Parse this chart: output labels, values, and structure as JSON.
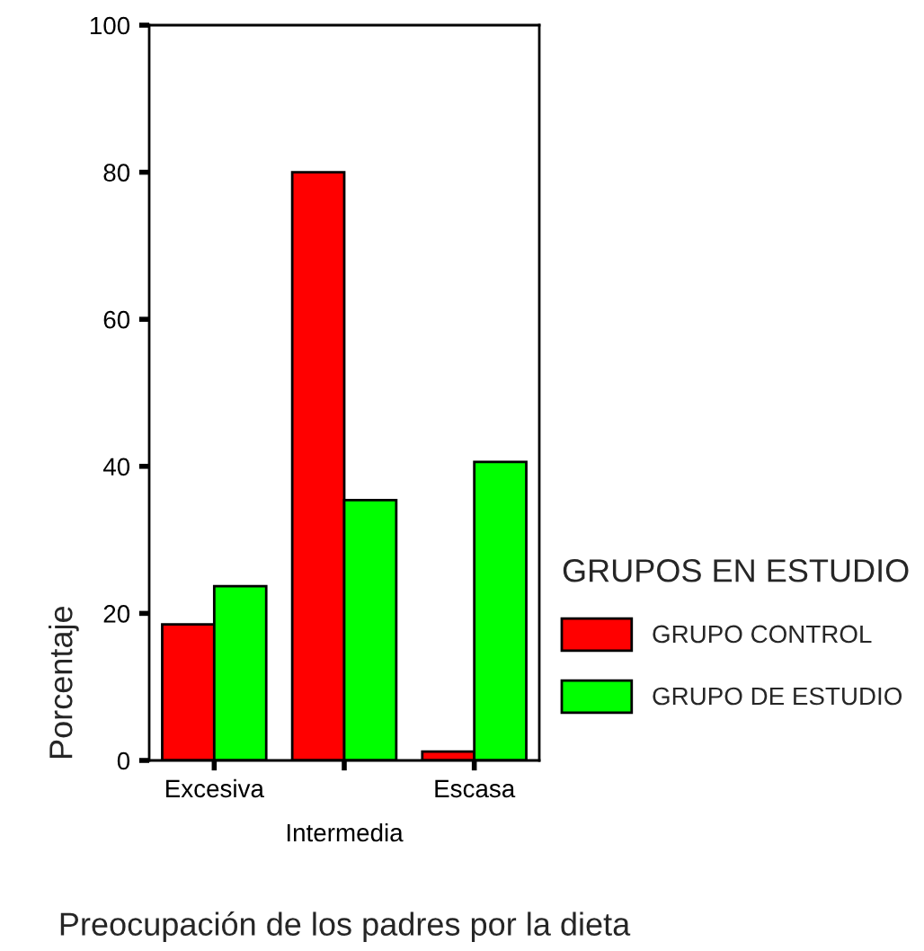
{
  "chart_data": {
    "type": "bar",
    "xlabel": "Preocupación de los padres por la dieta",
    "ylabel": "Porcentaje",
    "legend_title": "GRUPOS EN ESTUDIO",
    "legend": "right",
    "categories": [
      "Excesiva",
      "Intermedia",
      "Escasa"
    ],
    "series": [
      {
        "name": "GRUPO CONTROL",
        "color": "#ff0000",
        "values": [
          18.5,
          80,
          1.2
        ]
      },
      {
        "name": "GRUPO DE ESTUDIO",
        "color": "#00ff00",
        "values": [
          23.7,
          35.4,
          40.6
        ]
      }
    ],
    "ylim": [
      0,
      100
    ],
    "yticks": [
      0,
      20,
      40,
      60,
      80,
      100
    ],
    "grid": false
  }
}
